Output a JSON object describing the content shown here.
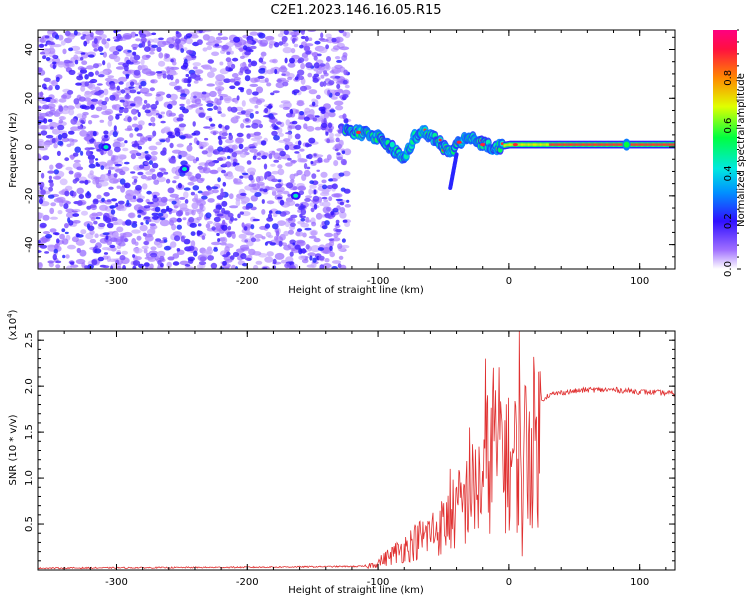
{
  "title": "C2E1.2023.146.16.05.R15",
  "chart_data": [
    {
      "type": "heatmap",
      "title": "C2E1.2023.146.16.05.R15",
      "xlabel": "Height of straight line (km)",
      "ylabel": "Frequency (Hz)",
      "xlim": [
        -360,
        127
      ],
      "ylim": [
        -50,
        48
      ],
      "x_ticks": [
        -300,
        -200,
        -100,
        0,
        100
      ],
      "y_ticks": [
        -40,
        -20,
        0,
        20,
        40
      ],
      "colorbar": {
        "label": "Normalized spectral amplitude",
        "range": [
          0.0,
          1.0
        ],
        "ticks": [
          0.0,
          0.2,
          0.4,
          0.6,
          0.8
        ],
        "colormap": [
          "#ffffff",
          "#7a00ff",
          "#2020ff",
          "#00c8ff",
          "#00ff60",
          "#ffee00",
          "#ff6000",
          "#ff0040"
        ]
      },
      "features": [
        {
          "name": "noise_region",
          "x_range": [
            -360,
            -123
          ],
          "f_range": [
            -50,
            48
          ],
          "amplitude": 0.1
        },
        {
          "name": "main_trace",
          "points": [
            [
              -125,
              7
            ],
            [
              -115,
              6
            ],
            [
              -100,
              4
            ],
            [
              -90,
              0
            ],
            [
              -80,
              -5
            ],
            [
              -72,
              4
            ],
            [
              -65,
              6
            ],
            [
              -55,
              3
            ],
            [
              -45,
              -3
            ],
            [
              -38,
              2
            ],
            [
              -30,
              4
            ],
            [
              -20,
              1
            ],
            [
              -10,
              0
            ],
            [
              0,
              1
            ],
            [
              20,
              1
            ],
            [
              60,
              1
            ],
            [
              90,
              1
            ],
            [
              127,
              1
            ]
          ],
          "amplitude": 0.9
        },
        {
          "name": "spots",
          "points": [
            [
              -308,
              0
            ],
            [
              -248,
              -9
            ],
            [
              -163,
              -20
            ]
          ],
          "amplitude": 0.45
        }
      ]
    },
    {
      "type": "line",
      "xlabel": "Height of straight line (km)",
      "ylabel": "SNR (10 * v/v)",
      "y_multiplier_label": "(x10",
      "y_multiplier_exp": "4",
      "y_multiplier_close": ")",
      "xlim": [
        -360,
        127
      ],
      "ylim": [
        0,
        2.6
      ],
      "x_ticks": [
        -300,
        -200,
        -100,
        0,
        100
      ],
      "y_ticks": [
        0.5,
        1.0,
        1.5,
        2.0,
        2.5
      ],
      "series_color": "#e03030",
      "envelope": {
        "x": [
          -360,
          -200,
          -110,
          -100,
          -90,
          -80,
          -70,
          -60,
          -50,
          -40,
          -30,
          -20,
          -15,
          -10,
          -5,
          0,
          10,
          20,
          25,
          30,
          40,
          60,
          80,
          100,
          127
        ],
        "y": [
          0.02,
          0.03,
          0.04,
          0.1,
          0.2,
          0.3,
          0.4,
          0.5,
          0.6,
          0.8,
          1.0,
          1.2,
          1.5,
          1.6,
          1.7,
          1.4,
          1.6,
          1.75,
          1.85,
          1.9,
          1.93,
          1.96,
          1.96,
          1.94,
          1.92
        ]
      },
      "peaks": [
        [
          -18,
          2.3
        ],
        [
          -16,
          1.9
        ],
        [
          -12,
          2.2
        ],
        [
          -6,
          1.7
        ],
        [
          8,
          2.6
        ],
        [
          10,
          0.15
        ],
        [
          -30,
          1.55
        ],
        [
          -45,
          1.1
        ]
      ]
    }
  ]
}
